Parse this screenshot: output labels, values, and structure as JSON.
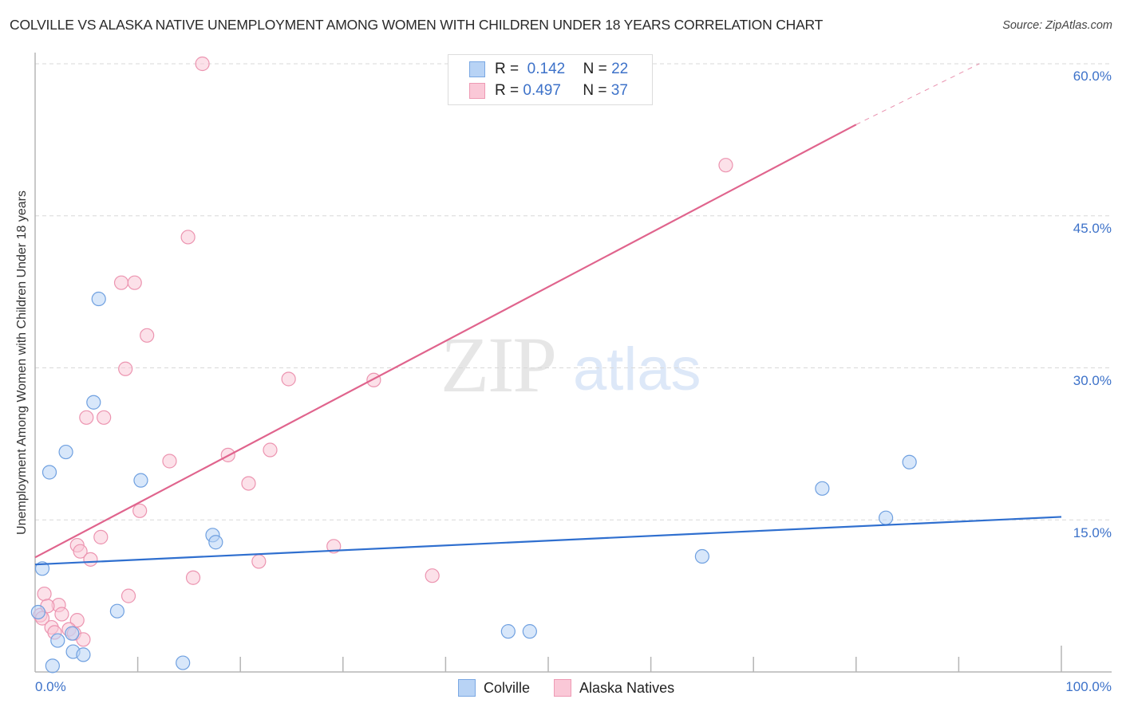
{
  "header": {
    "title": "COLVILLE VS ALASKA NATIVE UNEMPLOYMENT AMONG WOMEN WITH CHILDREN UNDER 18 YEARS CORRELATION CHART",
    "source": "Source: ZipAtlas.com"
  },
  "axes": {
    "ylabel": "Unemployment Among Women with Children Under 18 years",
    "yticks": [
      "60.0%",
      "45.0%",
      "30.0%",
      "15.0%"
    ],
    "xticks": [
      "0.0%",
      "100.0%"
    ]
  },
  "legend": {
    "rows": [
      {
        "r_label": "R =",
        "r_value": "0.142",
        "n_label": "N =",
        "n_value": "22"
      },
      {
        "r_label": "R =",
        "r_value": "0.497",
        "n_label": "N =",
        "n_value": "37"
      }
    ]
  },
  "bottom_legend": {
    "items": [
      {
        "label": "Colville"
      },
      {
        "label": "Alaska Natives"
      }
    ]
  },
  "watermark": {
    "zip": "ZIP",
    "atlas": "atlas"
  },
  "colors": {
    "colville_fill": "#b8d3f5",
    "colville_stroke": "#6fa0e0",
    "colville_line": "#2f6fcf",
    "alaska_fill": "#fac8d7",
    "alaska_stroke": "#ec94b0",
    "alaska_line": "#e0648d",
    "tick_label": "#3d72c9"
  },
  "chart_data": {
    "type": "scatter",
    "title": "COLVILLE VS ALASKA NATIVE UNEMPLOYMENT AMONG WOMEN WITH CHILDREN UNDER 18 YEARS CORRELATION CHART",
    "xlabel": "",
    "ylabel": "Unemployment Among Women with Children Under 18 years",
    "xlim": [
      0,
      100
    ],
    "ylim": [
      0,
      60
    ],
    "grid": "horizontal dashed at 15, 30, 45, 60",
    "legend_position": "top-center and bottom",
    "series": [
      {
        "name": "Colville",
        "R": 0.142,
        "N": 22,
        "trend": {
          "x": [
            0,
            100
          ],
          "y": [
            10.6,
            15.3
          ]
        },
        "points": [
          [
            0.7,
            10.2
          ],
          [
            0.3,
            5.9
          ],
          [
            1.4,
            19.7
          ],
          [
            3.0,
            21.7
          ],
          [
            6.2,
            36.8
          ],
          [
            5.7,
            26.6
          ],
          [
            10.3,
            18.9
          ],
          [
            17.3,
            13.5
          ],
          [
            17.6,
            12.8
          ],
          [
            8.0,
            6.0
          ],
          [
            3.6,
            3.8
          ],
          [
            2.2,
            3.1
          ],
          [
            3.7,
            2.0
          ],
          [
            4.7,
            1.7
          ],
          [
            1.7,
            0.6
          ],
          [
            14.4,
            0.9
          ],
          [
            46.1,
            4.0
          ],
          [
            48.2,
            4.0
          ],
          [
            65.0,
            11.4
          ],
          [
            76.7,
            18.1
          ],
          [
            82.9,
            15.2
          ],
          [
            85.2,
            20.7
          ]
        ]
      },
      {
        "name": "Alaska Natives",
        "R": 0.497,
        "N": 37,
        "trend": {
          "x": [
            0,
            80
          ],
          "y": [
            11.3,
            54.0
          ],
          "dashed_extension": {
            "x": [
              80,
              92
            ],
            "y": [
              54.0,
              60.0
            ]
          }
        },
        "points": [
          [
            16.3,
            60.0
          ],
          [
            67.3,
            50.0
          ],
          [
            14.9,
            42.9
          ],
          [
            8.4,
            38.4
          ],
          [
            9.7,
            38.4
          ],
          [
            10.9,
            33.2
          ],
          [
            8.8,
            29.9
          ],
          [
            24.7,
            28.9
          ],
          [
            33.0,
            28.8
          ],
          [
            5.0,
            25.1
          ],
          [
            6.7,
            25.1
          ],
          [
            13.1,
            20.8
          ],
          [
            22.9,
            21.9
          ],
          [
            18.8,
            21.4
          ],
          [
            20.8,
            18.6
          ],
          [
            10.2,
            15.9
          ],
          [
            6.4,
            13.3
          ],
          [
            4.1,
            12.5
          ],
          [
            4.4,
            11.9
          ],
          [
            5.4,
            11.1
          ],
          [
            29.1,
            12.4
          ],
          [
            21.8,
            10.9
          ],
          [
            15.4,
            9.3
          ],
          [
            38.7,
            9.5
          ],
          [
            9.1,
            7.5
          ],
          [
            0.9,
            7.7
          ],
          [
            2.3,
            6.6
          ],
          [
            0.5,
            5.6
          ],
          [
            0.7,
            5.3
          ],
          [
            2.6,
            5.7
          ],
          [
            1.6,
            4.4
          ],
          [
            4.1,
            5.1
          ],
          [
            1.9,
            3.9
          ],
          [
            3.3,
            4.2
          ],
          [
            3.8,
            3.8
          ],
          [
            4.7,
            3.2
          ],
          [
            1.2,
            6.5
          ]
        ]
      }
    ]
  }
}
